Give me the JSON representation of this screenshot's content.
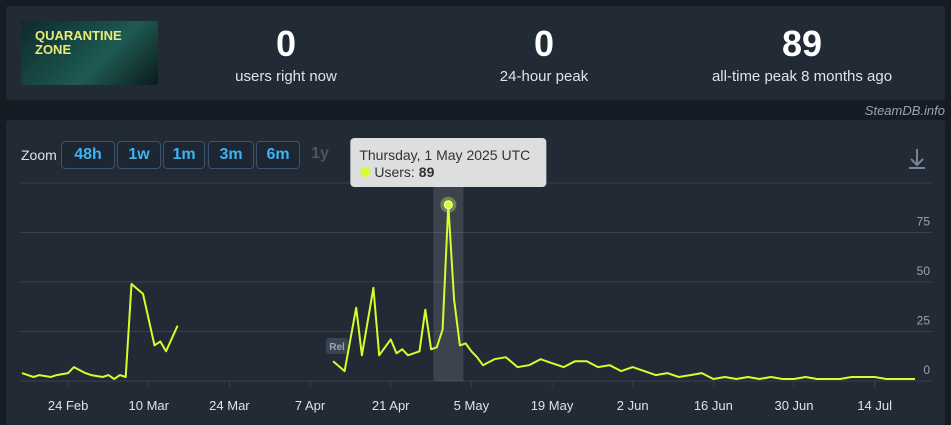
{
  "header": {
    "image_text": "QUARANTINE ZONE",
    "stats": [
      {
        "value": "0",
        "label": "users right now"
      },
      {
        "value": "0",
        "label": "24-hour peak"
      },
      {
        "value": "89",
        "label": "all-time peak 8 months ago"
      }
    ],
    "attribution": "SteamDB.info"
  },
  "zoom": {
    "label": "Zoom",
    "buttons": [
      "48h",
      "1w",
      "1m",
      "3m",
      "6m",
      "1y"
    ]
  },
  "tooltip": {
    "date": "Thursday, 1 May 2025 UTC",
    "series_label": "Users:",
    "value": "89"
  },
  "chart_data": {
    "type": "line",
    "annotation": "Rel",
    "x": [
      "2025-02-16",
      "2025-02-17",
      "2025-02-18",
      "2025-02-19",
      "2025-02-21",
      "2025-02-22",
      "2025-02-24",
      "2025-02-25",
      "2025-02-27",
      "2025-02-28",
      "2025-03-02",
      "2025-03-03",
      "2025-03-04",
      "2025-03-05",
      "2025-03-06",
      "2025-03-07",
      "2025-03-09",
      "2025-03-11",
      "2025-03-12",
      "2025-03-13",
      "2025-03-15",
      "2025-03-16",
      "2025-04-11",
      "2025-04-13",
      "2025-04-15",
      "2025-04-16",
      "2025-04-18",
      "2025-04-19",
      "2025-04-21",
      "2025-04-22",
      "2025-04-23",
      "2025-04-24",
      "2025-04-26",
      "2025-04-27",
      "2025-04-28",
      "2025-04-29",
      "2025-04-30",
      "2025-05-01",
      "2025-05-02",
      "2025-05-03",
      "2025-05-04",
      "2025-05-05",
      "2025-05-06",
      "2025-05-07",
      "2025-05-09",
      "2025-05-11",
      "2025-05-13",
      "2025-05-15",
      "2025-05-17",
      "2025-05-19",
      "2025-05-21",
      "2025-05-23",
      "2025-05-25",
      "2025-05-27",
      "2025-05-29",
      "2025-05-31",
      "2025-06-02",
      "2025-06-04",
      "2025-06-06",
      "2025-06-08",
      "2025-06-10",
      "2025-06-12",
      "2025-06-14",
      "2025-06-16",
      "2025-06-18",
      "2025-06-20",
      "2025-06-22",
      "2025-06-24",
      "2025-06-26",
      "2025-06-28",
      "2025-06-30",
      "2025-07-02",
      "2025-07-04",
      "2025-07-06",
      "2025-07-08",
      "2025-07-10",
      "2025-07-12",
      "2025-07-14",
      "2025-07-16",
      "2025-07-18",
      "2025-07-21"
    ],
    "series": [
      {
        "name": "Users",
        "color": "#d4ff2a",
        "values": [
          4,
          3,
          2,
          3,
          2,
          3,
          4,
          7,
          4,
          3,
          2,
          3,
          1,
          3,
          2,
          49,
          44,
          18,
          20,
          15,
          28,
          null,
          10,
          5,
          37,
          13,
          47,
          13,
          21,
          14,
          16,
          13,
          15,
          36,
          16,
          17,
          26,
          89,
          41,
          18,
          19,
          15,
          12,
          8,
          11,
          12,
          7,
          8,
          11,
          9,
          7,
          10,
          10,
          7,
          8,
          5,
          7,
          5,
          3,
          4,
          2,
          3,
          4,
          1,
          2,
          1,
          2,
          1,
          2,
          1,
          1,
          2,
          1,
          1,
          1,
          2,
          2,
          2,
          1,
          1,
          1
        ]
      }
    ],
    "xlim": [
      "2025-02-16",
      "2025-07-21"
    ],
    "xticks": [
      {
        "value": "2025-02-24",
        "label": "24 Feb"
      },
      {
        "value": "2025-03-10",
        "label": "10 Mar"
      },
      {
        "value": "2025-03-24",
        "label": "24 Mar"
      },
      {
        "value": "2025-04-07",
        "label": "7 Apr"
      },
      {
        "value": "2025-04-21",
        "label": "21 Apr"
      },
      {
        "value": "2025-05-05",
        "label": "5 May"
      },
      {
        "value": "2025-05-19",
        "label": "19 May"
      },
      {
        "value": "2025-06-02",
        "label": "2 Jun"
      },
      {
        "value": "2025-06-16",
        "label": "16 Jun"
      },
      {
        "value": "2025-06-30",
        "label": "30 Jun"
      },
      {
        "value": "2025-07-14",
        "label": "14 Jul"
      }
    ],
    "ylim": [
      0,
      100
    ],
    "yticks": [
      0,
      25,
      50,
      75
    ],
    "grid": true
  }
}
